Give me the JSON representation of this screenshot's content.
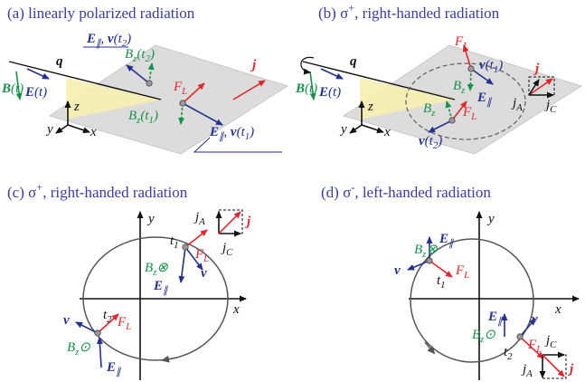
{
  "panels": [
    {
      "title": [
        {
          "text": "(a) linearly polarized radiation"
        }
      ],
      "labels": [
        [
          {
            "bold": "q"
          }
        ],
        [
          {
            "bold": "B"
          },
          {
            "text": "(t)"
          }
        ],
        [
          {
            "bold": "E"
          },
          {
            "text": "(t)"
          }
        ],
        [
          {
            "text": "z"
          }
        ],
        [
          {
            "text": "y"
          }
        ],
        [
          {
            "text": "x"
          }
        ],
        [
          {
            "bold": "E"
          },
          {
            "sub": "∥"
          },
          {
            "text": ", "
          },
          {
            "bold": "v"
          },
          {
            "text": "(t"
          },
          {
            "sub": "2"
          },
          {
            "text": ")"
          }
        ],
        [
          {
            "text": "B"
          },
          {
            "sub": "z"
          },
          {
            "text": "(t"
          },
          {
            "sub": "2"
          },
          {
            "text": ")"
          }
        ],
        [
          {
            "text": "F"
          },
          {
            "sub": "L"
          }
        ],
        [
          {
            "text": "B"
          },
          {
            "sub": "z"
          },
          {
            "text": "(t"
          },
          {
            "sub": "1"
          },
          {
            "text": ")"
          }
        ],
        [
          {
            "bold": "E"
          },
          {
            "sub": "∥"
          },
          {
            "text": ", "
          },
          {
            "bold": "v"
          },
          {
            "text": "(t"
          },
          {
            "sub": "1"
          },
          {
            "text": ")"
          }
        ],
        [
          {
            "bold": "j"
          }
        ]
      ]
    },
    {
      "title": [
        {
          "text": "(b) σ"
        },
        {
          "sup": "+"
        },
        {
          "text": ", right-handed radiation"
        }
      ],
      "labels": [
        [
          {
            "bold": "q"
          }
        ],
        [
          {
            "bold": "B"
          },
          {
            "text": "(t)"
          }
        ],
        [
          {
            "bold": "E"
          },
          {
            "text": "(t)"
          }
        ],
        [
          {
            "text": "z"
          }
        ],
        [
          {
            "text": "y"
          }
        ],
        [
          {
            "text": "x"
          }
        ],
        [
          {
            "text": "F"
          },
          {
            "sub": "L"
          }
        ],
        [
          {
            "bold": "v"
          },
          {
            "text": "(t"
          },
          {
            "sub": "1"
          },
          {
            "text": ")"
          }
        ],
        [
          {
            "text": "B"
          },
          {
            "sub": "z"
          }
        ],
        [
          {
            "bold": "E"
          },
          {
            "sub": "∥"
          }
        ],
        [
          {
            "text": "F"
          },
          {
            "sub": "L"
          }
        ],
        [
          {
            "text": "B"
          },
          {
            "sub": "z"
          }
        ],
        [
          {
            "bold": "v"
          },
          {
            "text": "(t"
          },
          {
            "sub": "2"
          },
          {
            "text": ")"
          }
        ],
        [
          {
            "bold": "j"
          }
        ],
        [
          {
            "text": "j"
          },
          {
            "sub": "A"
          }
        ],
        [
          {
            "text": "j"
          },
          {
            "sub": "C"
          }
        ]
      ]
    },
    {
      "title": [
        {
          "text": "(c) σ"
        },
        {
          "sup": "+"
        },
        {
          "text": ",  right-handed radiation"
        }
      ],
      "labels": [
        [
          {
            "text": "y"
          }
        ],
        [
          {
            "text": "x"
          }
        ],
        [
          {
            "text": "t"
          },
          {
            "sub": "1"
          }
        ],
        [
          {
            "text": "F"
          },
          {
            "sub": "L"
          }
        ],
        [
          {
            "text": "B"
          },
          {
            "sub": "z"
          },
          {
            "text": "⊗"
          }
        ],
        [
          {
            "bold": "v"
          }
        ],
        [
          {
            "bold": "E"
          },
          {
            "sub": "∥"
          }
        ],
        [
          {
            "text": "t"
          },
          {
            "sub": "2"
          }
        ],
        [
          {
            "text": "F"
          },
          {
            "sub": "L"
          }
        ],
        [
          {
            "bold": "v"
          }
        ],
        [
          {
            "text": "B"
          },
          {
            "sub": "z"
          },
          {
            "text": "⊙"
          }
        ],
        [
          {
            "bold": "E"
          },
          {
            "sub": "∥"
          }
        ],
        [
          {
            "text": "j"
          },
          {
            "sub": "A"
          }
        ],
        [
          {
            "bold": "j"
          }
        ],
        [
          {
            "text": "j"
          },
          {
            "sub": "C"
          }
        ]
      ]
    },
    {
      "title": [
        {
          "text": "(d) σ"
        },
        {
          "sup": "-"
        },
        {
          "text": ",  left-handed radiation"
        }
      ],
      "labels": [
        [
          {
            "text": "y"
          }
        ],
        [
          {
            "text": "x"
          }
        ],
        [
          {
            "text": "B"
          },
          {
            "sub": "z"
          },
          {
            "text": "⊗"
          }
        ],
        [
          {
            "bold": "E"
          },
          {
            "sub": "∥"
          }
        ],
        [
          {
            "bold": "v"
          }
        ],
        [
          {
            "text": "t"
          },
          {
            "sub": "1"
          }
        ],
        [
          {
            "text": "F"
          },
          {
            "sub": "L"
          }
        ],
        [
          {
            "bold": "E"
          },
          {
            "sub": "∥"
          }
        ],
        [
          {
            "text": "B"
          },
          {
            "sub": "z"
          },
          {
            "text": "⊙"
          }
        ],
        [
          {
            "bold": "v"
          }
        ],
        [
          {
            "text": "t"
          },
          {
            "sub": "2"
          }
        ],
        [
          {
            "text": "F"
          },
          {
            "sub": "L"
          }
        ],
        [
          {
            "text": "j"
          },
          {
            "sub": "C"
          }
        ],
        [
          {
            "text": "j"
          },
          {
            "sub": "A"
          }
        ],
        [
          {
            "bold": "j"
          }
        ]
      ]
    }
  ]
}
